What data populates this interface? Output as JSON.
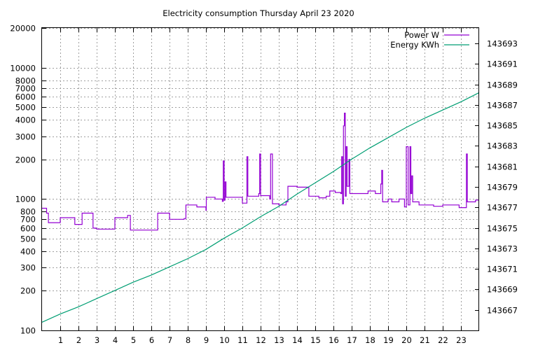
{
  "chart_data": {
    "type": "line",
    "title": "Electricity consumption Thursday April 23 2020",
    "xlim": [
      0,
      24
    ],
    "x_ticks": [
      1,
      2,
      3,
      4,
      5,
      6,
      7,
      8,
      9,
      10,
      11,
      12,
      13,
      14,
      15,
      16,
      17,
      18,
      19,
      20,
      21,
      22,
      23
    ],
    "y_left": {
      "scale": "log",
      "lim": [
        100,
        20000
      ],
      "ticks": [
        100,
        200,
        300,
        400,
        500,
        600,
        700,
        800,
        1000,
        2000,
        3000,
        4000,
        5000,
        6000,
        7000,
        8000,
        10000,
        20000
      ]
    },
    "y_right": {
      "scale": "linear",
      "lim": [
        143665.0,
        143694.5
      ],
      "ticks": [
        143667,
        143669,
        143671,
        143673,
        143675,
        143677,
        143679,
        143681,
        143683,
        143685,
        143687,
        143689,
        143691,
        143693
      ]
    },
    "legend_position": "top-right",
    "grid": true,
    "series": [
      {
        "name": "Power W",
        "color": "#9400d3",
        "axis": "left",
        "step": true,
        "points": [
          [
            0.0,
            850
          ],
          [
            0.25,
            780
          ],
          [
            0.35,
            660
          ],
          [
            1.0,
            720
          ],
          [
            1.8,
            640
          ],
          [
            2.2,
            780
          ],
          [
            2.8,
            600
          ],
          [
            3.0,
            590
          ],
          [
            4.0,
            720
          ],
          [
            4.7,
            750
          ],
          [
            4.85,
            580
          ],
          [
            6.0,
            580
          ],
          [
            6.35,
            780
          ],
          [
            7.0,
            700
          ],
          [
            7.8,
            710
          ],
          [
            7.9,
            900
          ],
          [
            8.5,
            870
          ],
          [
            9.0,
            820
          ],
          [
            9.02,
            1030
          ],
          [
            9.5,
            1000
          ],
          [
            9.9,
            960
          ],
          [
            9.95,
            1950
          ],
          [
            10.0,
            980
          ],
          [
            10.05,
            1350
          ],
          [
            10.1,
            1030
          ],
          [
            11.0,
            930
          ],
          [
            11.25,
            2100
          ],
          [
            11.3,
            1050
          ],
          [
            11.9,
            1100
          ],
          [
            11.95,
            2200
          ],
          [
            12.0,
            1060
          ],
          [
            12.5,
            1000
          ],
          [
            12.55,
            2200
          ],
          [
            12.65,
            920
          ],
          [
            13.0,
            900
          ],
          [
            13.4,
            950
          ],
          [
            13.5,
            1250
          ],
          [
            14.0,
            1230
          ],
          [
            14.6,
            1220
          ],
          [
            14.65,
            1050
          ],
          [
            15.2,
            1020
          ],
          [
            15.6,
            1050
          ],
          [
            15.8,
            1150
          ],
          [
            16.1,
            1120
          ],
          [
            16.4,
            1100
          ],
          [
            16.45,
            2100
          ],
          [
            16.5,
            920
          ],
          [
            16.55,
            3600
          ],
          [
            16.6,
            4500
          ],
          [
            16.65,
            1050
          ],
          [
            16.7,
            2500
          ],
          [
            16.75,
            1250
          ],
          [
            16.85,
            2000
          ],
          [
            16.9,
            1100
          ],
          [
            17.4,
            1100
          ],
          [
            17.9,
            1150
          ],
          [
            18.3,
            1100
          ],
          [
            18.6,
            1300
          ],
          [
            18.65,
            1650
          ],
          [
            18.7,
            950
          ],
          [
            19.0,
            1000
          ],
          [
            19.2,
            950
          ],
          [
            19.6,
            1000
          ],
          [
            19.9,
            870
          ],
          [
            20.0,
            2500
          ],
          [
            20.1,
            900
          ],
          [
            20.2,
            2500
          ],
          [
            20.25,
            1100
          ],
          [
            20.3,
            1500
          ],
          [
            20.35,
            950
          ],
          [
            20.7,
            900
          ],
          [
            21.5,
            880
          ],
          [
            22.0,
            900
          ],
          [
            22.9,
            860
          ],
          [
            23.3,
            2200
          ],
          [
            23.35,
            950
          ],
          [
            23.8,
            980
          ],
          [
            24.0,
            980
          ]
        ]
      },
      {
        "name": "Energy KWh",
        "color": "#009e73",
        "axis": "right",
        "points": [
          [
            0,
            143665.8
          ],
          [
            1,
            143666.6
          ],
          [
            2,
            143667.3
          ],
          [
            3,
            143668.1
          ],
          [
            4,
            143668.9
          ],
          [
            5,
            143669.7
          ],
          [
            6,
            143670.4
          ],
          [
            7,
            143671.2
          ],
          [
            8,
            143672.0
          ],
          [
            9,
            143672.9
          ],
          [
            10,
            143674.0
          ],
          [
            11,
            143675.0
          ],
          [
            12,
            143676.1
          ],
          [
            13,
            143677.1
          ],
          [
            14,
            143678.3
          ],
          [
            15,
            143679.4
          ],
          [
            16,
            143680.5
          ],
          [
            17,
            143681.7
          ],
          [
            18,
            143682.8
          ],
          [
            19,
            143683.8
          ],
          [
            20,
            143684.8
          ],
          [
            21,
            143685.7
          ],
          [
            22,
            143686.5
          ],
          [
            23,
            143687.3
          ],
          [
            24,
            143688.2
          ]
        ]
      }
    ]
  }
}
